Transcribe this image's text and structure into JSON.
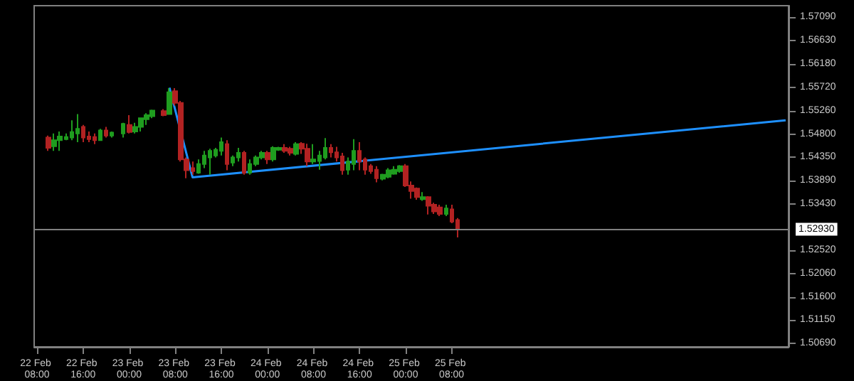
{
  "chart_data": {
    "type": "candlestick",
    "marker": "none",
    "categories": [
      "22 Feb 08:00",
      null,
      null,
      null,
      null,
      null,
      null,
      null,
      "22 Feb 16:00",
      null,
      null,
      null,
      null,
      null,
      null,
      null,
      "23 Feb 00:00",
      null,
      null,
      null,
      null,
      null,
      null,
      null,
      "23 Feb 08:00",
      null,
      null,
      null,
      null,
      null,
      null,
      null,
      "23 Feb 16:00",
      null,
      null,
      null,
      null,
      null,
      null,
      null,
      "24 Feb 00:00",
      null,
      null,
      null,
      null,
      null,
      null,
      null,
      "24 Feb 08:00",
      null,
      null,
      null,
      null,
      null,
      null,
      null,
      "24 Feb 16:00",
      null,
      null,
      null,
      null,
      null,
      null,
      null,
      "25 Feb 00:00",
      null,
      null,
      null,
      null,
      null,
      null,
      null,
      "25 Feb 08:00",
      null,
      null,
      null,
      null,
      null,
      null,
      null,
      null,
      null,
      null,
      null,
      null,
      null,
      null,
      null,
      null,
      null,
      null,
      null,
      null,
      null,
      null,
      null,
      null,
      null,
      null,
      null,
      null,
      null,
      null,
      null,
      null,
      null,
      null,
      null,
      null,
      null,
      null,
      null,
      null,
      null,
      null,
      null,
      null,
      null,
      null,
      null,
      null,
      null,
      null,
      null,
      null,
      null,
      null,
      null,
      null,
      null,
      null
    ],
    "ylim": [
      1.5062,
      1.5732
    ],
    "yticks": [
      {
        "value": 1.5709,
        "label": "1.57090"
      },
      {
        "value": 1.5663,
        "label": "1.56630"
      },
      {
        "value": 1.5618,
        "label": "1.56180"
      },
      {
        "value": 1.5572,
        "label": "1.55720"
      },
      {
        "value": 1.5526,
        "label": "1.55260"
      },
      {
        "value": 1.548,
        "label": "1.54800"
      },
      {
        "value": 1.5435,
        "label": "1.54350"
      },
      {
        "value": 1.5389,
        "label": "1.53890"
      },
      {
        "value": 1.5343,
        "label": "1.53430"
      },
      {
        "value": 1.5252,
        "label": "1.52520"
      },
      {
        "value": 1.5206,
        "label": "1.52060"
      },
      {
        "value": 1.516,
        "label": "1.51600"
      },
      {
        "value": 1.5115,
        "label": "1.51150"
      },
      {
        "value": 1.5069,
        "label": "1.50690"
      }
    ],
    "ref_lines": [
      {
        "axis": "y",
        "value": 1.5293,
        "label": "1.52930",
        "color": "#808080"
      }
    ],
    "series": [
      {
        "ohlc": [
          null,
          null,
          [
            1.5473,
            1.5477,
            1.5447,
            1.5453
          ],
          [
            1.5456,
            1.5481,
            1.5447,
            1.5468
          ],
          [
            1.5468,
            1.5485,
            1.5447,
            1.5475
          ],
          [
            1.547,
            1.5481,
            1.5468,
            1.5474
          ],
          [
            1.5473,
            1.5507,
            1.5468,
            1.5484
          ],
          [
            1.5481,
            1.5519,
            1.5464,
            1.549
          ],
          [
            1.5494,
            1.5498,
            1.5464,
            1.5473
          ],
          [
            1.5475,
            1.5485,
            1.5464,
            1.547
          ],
          [
            1.5474,
            1.5481,
            1.546,
            1.5468
          ],
          [
            1.5468,
            1.549,
            1.5467,
            1.5487
          ],
          [
            1.5487,
            1.5494,
            1.5473,
            1.5477
          ],
          [
            1.5477,
            1.5485,
            1.5473,
            1.5483
          ],
          null,
          [
            1.5481,
            1.5502,
            1.5473,
            1.55
          ],
          [
            1.5498,
            1.5517,
            1.5481,
            1.5484
          ],
          [
            1.5485,
            1.5502,
            1.5481,
            1.5494
          ],
          [
            1.5494,
            1.5512,
            1.5485,
            1.5511
          ],
          [
            1.5509,
            1.5521,
            1.5498,
            1.5517
          ],
          [
            1.5515,
            1.5528,
            1.5511,
            1.5526
          ],
          null,
          [
            1.5525,
            1.5529,
            1.5515,
            1.5517
          ],
          [
            1.5519,
            1.557,
            1.5518,
            1.5562
          ],
          [
            1.5564,
            1.557,
            1.5536,
            1.5541
          ],
          [
            1.5541,
            1.5545,
            1.5426,
            1.543
          ],
          [
            1.543,
            1.5434,
            1.5393,
            1.5409
          ],
          [
            1.5413,
            1.5426,
            1.54,
            1.5407
          ],
          [
            1.5404,
            1.543,
            1.5402,
            1.5421
          ],
          [
            1.5421,
            1.5447,
            1.5413,
            1.5438
          ],
          [
            1.5434,
            1.5451,
            1.54,
            1.5447
          ],
          [
            1.5438,
            1.5453,
            1.5434,
            1.5449
          ],
          [
            1.5447,
            1.5473,
            1.5438,
            1.5464
          ],
          [
            1.546,
            1.5468,
            1.5409,
            1.5421
          ],
          [
            1.5424,
            1.5438,
            1.5417,
            1.5434
          ],
          [
            1.5434,
            1.5453,
            1.5426,
            1.5443
          ],
          [
            1.5443,
            1.5447,
            1.54,
            1.5404
          ],
          [
            1.5404,
            1.543,
            1.54,
            1.5421
          ],
          [
            1.5421,
            1.5438,
            1.5417,
            1.5434
          ],
          [
            1.5434,
            1.5447,
            1.543,
            1.5443
          ],
          [
            1.5443,
            1.5447,
            1.5421,
            1.543
          ],
          [
            1.543,
            1.5456,
            1.5426,
            1.5453
          ],
          [
            1.5449,
            1.5455,
            1.5447,
            1.5453
          ],
          [
            1.5453,
            1.546,
            1.5443,
            1.5447
          ],
          [
            1.5451,
            1.5455,
            1.5438,
            1.5443
          ],
          [
            1.5441,
            1.5464,
            1.5438,
            1.546
          ],
          [
            1.5461,
            1.5464,
            1.5441,
            1.5451
          ],
          [
            1.5451,
            1.5461,
            1.5417,
            1.5426
          ],
          [
            1.5426,
            1.546,
            1.5421,
            1.543
          ],
          [
            1.5427,
            1.5447,
            1.541,
            1.5438
          ],
          [
            1.5434,
            1.5472,
            1.543,
            1.5453
          ],
          [
            1.5453,
            1.546,
            1.5434,
            1.5444
          ],
          [
            1.5444,
            1.5455,
            1.5426,
            1.5434
          ],
          [
            1.5436,
            1.5443,
            1.54,
            1.5409
          ],
          [
            1.541,
            1.5434,
            1.54,
            1.5426
          ],
          [
            1.5421,
            1.547,
            1.5409,
            1.5447
          ],
          [
            1.5447,
            1.5464,
            1.5409,
            1.5426
          ],
          [
            1.543,
            1.5434,
            1.54,
            1.541
          ],
          [
            1.5417,
            1.5421,
            1.5402,
            1.5407
          ],
          [
            1.541,
            1.5417,
            1.5385,
            1.5393
          ],
          [
            1.5392,
            1.5402,
            1.5389,
            1.54
          ],
          [
            1.5396,
            1.5413,
            1.5393,
            1.5409
          ],
          [
            1.5402,
            1.5417,
            1.54,
            1.541
          ],
          [
            1.5407,
            1.5419,
            1.5404,
            1.5417
          ],
          [
            1.5417,
            1.5421,
            1.5376,
            1.5379
          ],
          [
            1.5379,
            1.5387,
            1.5353,
            1.5368
          ],
          [
            1.5373,
            1.5375,
            1.5351,
            1.5356
          ],
          [
            1.5352,
            1.5366,
            1.5349,
            1.5356
          ],
          [
            1.5356,
            1.5358,
            1.5322,
            1.5339
          ],
          [
            1.5341,
            1.5345,
            1.5323,
            1.5328
          ],
          [
            1.5336,
            1.5341,
            1.5319,
            1.5323
          ],
          [
            1.5323,
            1.5341,
            1.5319,
            1.5334
          ],
          [
            1.5332,
            1.5341,
            1.5305,
            1.5308
          ],
          [
            1.5311,
            1.5315,
            1.5277,
            1.5293
          ],
          null,
          null,
          null,
          null,
          null,
          null,
          null,
          null,
          null,
          null,
          null,
          null,
          null,
          null,
          null,
          null,
          null,
          null,
          null,
          null,
          null,
          null,
          null,
          null,
          null,
          null,
          null,
          null,
          null,
          null,
          null,
          null,
          null,
          null,
          null,
          null,
          null,
          null,
          null,
          null,
          null,
          null,
          null,
          null,
          null,
          null,
          null,
          null,
          null,
          null,
          null,
          null,
          null,
          null,
          null,
          null,
          null
        ],
        "colors": [
          null,
          null,
          "#b22222",
          "#1f9d1f",
          "#1f9d1f",
          "#1f9d1f",
          "#1f9d1f",
          "#1f9d1f",
          "#b22222",
          "#b22222",
          "#b22222",
          "#1f9d1f",
          "#b22222",
          "#1f9d1f",
          null,
          "#1f9d1f",
          "#b22222",
          "#1f9d1f",
          "#1f9d1f",
          "#1f9d1f",
          "#1f9d1f",
          null,
          "#b22222",
          "#1f9d1f",
          "#b22222",
          "#b22222",
          "#b22222",
          "#b22222",
          "#1f9d1f",
          "#1f9d1f",
          "#1f9d1f",
          "#1f9d1f",
          "#1f9d1f",
          "#b22222",
          "#1f9d1f",
          "#1f9d1f",
          "#b22222",
          "#1f9d1f",
          "#1f9d1f",
          "#1f9d1f",
          "#b22222",
          "#1f9d1f",
          "#1f9d1f",
          "#b22222",
          "#b22222",
          "#1f9d1f",
          "#b22222",
          "#b22222",
          "#1f9d1f",
          "#1f9d1f",
          "#1f9d1f",
          "#b22222",
          "#b22222",
          "#b22222",
          "#1f9d1f",
          "#1f9d1f",
          "#b22222",
          "#b22222",
          "#b22222",
          "#b22222",
          "#1f9d1f",
          "#1f9d1f",
          "#1f9d1f",
          "#1f9d1f",
          "#b22222",
          "#b22222",
          "#b22222",
          "#1f9d1f",
          "#b22222",
          "#b22222",
          "#b22222",
          "#1f9d1f",
          "#b22222",
          "#b22222",
          null,
          null,
          null,
          null,
          null,
          null,
          null,
          null,
          null,
          null,
          null,
          null,
          null,
          null,
          null,
          null,
          null,
          null,
          null,
          null,
          null,
          null,
          null,
          null,
          null,
          null,
          null,
          null,
          null,
          null,
          null,
          null,
          null,
          null,
          null,
          null,
          null,
          null,
          null,
          null,
          null,
          null,
          null,
          null,
          null,
          null,
          null,
          null,
          null,
          null,
          null,
          null,
          null,
          null,
          null,
          null,
          null
        ]
      },
      {
        "type": "line",
        "color": "#1e90ff",
        "values": [
          null,
          null,
          null,
          null,
          null,
          null,
          null,
          null,
          null,
          null,
          null,
          null,
          null,
          null,
          null,
          null,
          null,
          null,
          null,
          null,
          null,
          null,
          null,
          1.5571,
          null,
          null,
          null,
          1.5395,
          null,
          null,
          null,
          null,
          null,
          null,
          null,
          null,
          null,
          null,
          null,
          null,
          null,
          null,
          null,
          null,
          null,
          null,
          null,
          null,
          null,
          null,
          null,
          null,
          null,
          null,
          null,
          null,
          null,
          null,
          null,
          null,
          null,
          null,
          null,
          null,
          null,
          null,
          null,
          null,
          null,
          null,
          null,
          null,
          null,
          null,
          null,
          null,
          null,
          null,
          null,
          null,
          null,
          null,
          null,
          null,
          null,
          null,
          null,
          null,
          null,
          null,
          null,
          null,
          null,
          null,
          null,
          null,
          null,
          null,
          null,
          null,
          null,
          null,
          null,
          null,
          null,
          null,
          null,
          null,
          null,
          null,
          null,
          null,
          null,
          null,
          null,
          null,
          null,
          null,
          null,
          null,
          null,
          null,
          null,
          null,
          null,
          null,
          null,
          null,
          null,
          null,
          1.5507
        ]
      }
    ]
  }
}
